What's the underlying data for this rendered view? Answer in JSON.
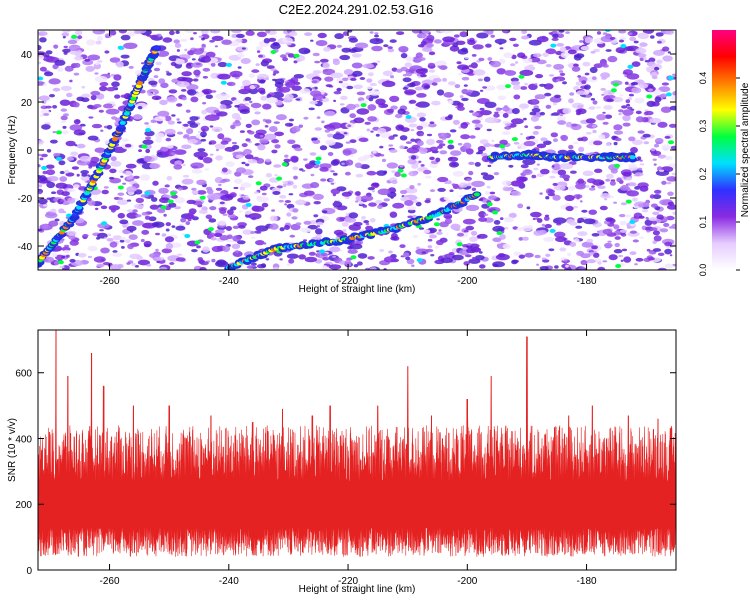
{
  "title": "C2E2.2024.291.02.53.G16",
  "chart_data": [
    {
      "type": "heatmap",
      "xlabel": "Height of straight line (km)",
      "ylabel": "Frequency (Hz)",
      "xlim": [
        -272,
        -165
      ],
      "ylim": [
        -50,
        50
      ],
      "xticks": [
        -260,
        -240,
        -220,
        -200,
        -180
      ],
      "yticks": [
        -40,
        -20,
        0,
        20,
        40
      ],
      "colorbar": {
        "label": "Normalized spectral amplitude",
        "range": [
          0,
          0.5
        ],
        "ticks": [
          0.0,
          0.1,
          0.2,
          0.3,
          0.4
        ],
        "colormap": [
          "#ffffff",
          "#e6ccff",
          "#8a2be2",
          "#3030ff",
          "#00e0ff",
          "#00ff40",
          "#ffff00",
          "#ff8000",
          "#ff0000",
          "#ff0080"
        ]
      },
      "features": [
        {
          "name": "",
          "points": [
            [
              -272,
              -47
            ],
            [
              -266,
              -28
            ],
            [
              -262,
              -10
            ],
            [
              -258,
              10
            ],
            [
              -254,
              33
            ],
            [
              -252,
              43
            ]
          ]
        },
        {
          "name": "",
          "points": [
            [
              -240,
              -49
            ],
            [
              -232,
              -41
            ],
            [
              -222,
              -38
            ],
            [
              -214,
              -34
            ],
            [
              -205,
              -27
            ],
            [
              -198,
              -18
            ]
          ]
        },
        {
          "name": "",
          "points": [
            [
              -196,
              -3
            ],
            [
              -190,
              -2
            ],
            [
              -185,
              -3
            ],
            [
              -177,
              -3
            ],
            [
              -172,
              -3
            ]
          ]
        }
      ],
      "noise_level": 0.12
    },
    {
      "type": "line",
      "xlabel": "Height of straight line (km)",
      "ylabel": "SNR (10 * v/v)",
      "xlim": [
        -272,
        -165
      ],
      "ylim": [
        0,
        730
      ],
      "xticks": [
        -260,
        -240,
        -220,
        -200,
        -180
      ],
      "yticks": [
        0,
        200,
        400,
        600
      ],
      "color": "#ee2222",
      "baseline_mean": 210,
      "spikes": [
        {
          "x": -269,
          "y": 730
        },
        {
          "x": -267,
          "y": 590
        },
        {
          "x": -263,
          "y": 660
        },
        {
          "x": -261,
          "y": 560
        },
        {
          "x": -256,
          "y": 500
        },
        {
          "x": -250,
          "y": 500
        },
        {
          "x": -243,
          "y": 470
        },
        {
          "x": -236,
          "y": 450
        },
        {
          "x": -231,
          "y": 490
        },
        {
          "x": -226,
          "y": 470
        },
        {
          "x": -223,
          "y": 500
        },
        {
          "x": -215,
          "y": 500
        },
        {
          "x": -210,
          "y": 620
        },
        {
          "x": -206,
          "y": 470
        },
        {
          "x": -200,
          "y": 520
        },
        {
          "x": -196,
          "y": 590
        },
        {
          "x": -190,
          "y": 710
        },
        {
          "x": -183,
          "y": 470
        },
        {
          "x": -179,
          "y": 500
        },
        {
          "x": -173,
          "y": 470
        },
        {
          "x": -168,
          "y": 460
        }
      ]
    }
  ]
}
